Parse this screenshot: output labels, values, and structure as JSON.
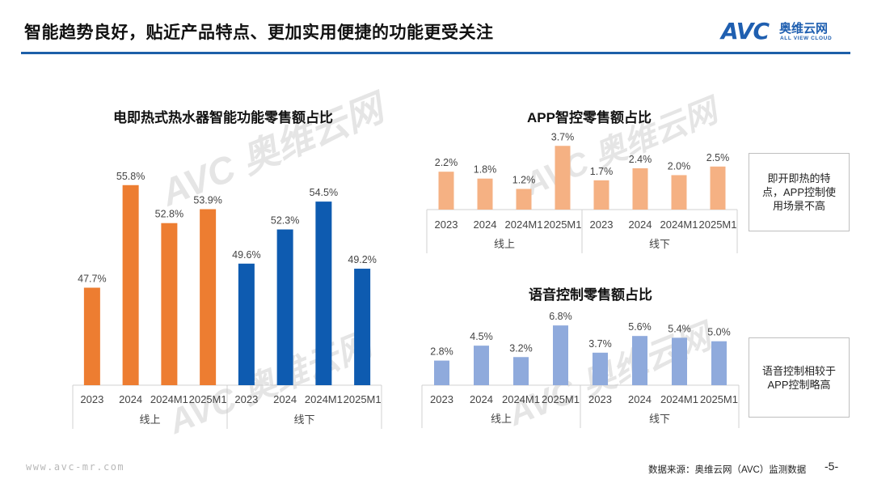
{
  "header": {
    "title": "智能趋势良好，贴近产品特点、更加实用便捷的功能更受关注",
    "accent_color": "#1d5fa8"
  },
  "logo": {
    "mark": "AVC",
    "name_cn": "奥维云网",
    "name_en": "ALL VIEW CLOUD"
  },
  "watermark": {
    "mark": "AVC",
    "name_cn": "奥维云网",
    "name_en": "ALL VIEW CLOUD"
  },
  "chart_data": [
    {
      "type": "bar",
      "title": "电即热式热水器智能功能零售额占比",
      "categories": [
        "2023",
        "2024",
        "2024M1",
        "2025M1",
        "2023",
        "2024",
        "2024M1",
        "2025M1"
      ],
      "groups": [
        "线上",
        "线下"
      ],
      "values": [
        47.7,
        55.8,
        52.8,
        53.9,
        49.6,
        52.3,
        54.5,
        49.2
      ],
      "labels": [
        "47.7%",
        "55.8%",
        "52.8%",
        "53.9%",
        "49.6%",
        "52.3%",
        "54.5%",
        "49.2%"
      ],
      "colors": [
        "#ed7d31",
        "#ed7d31",
        "#ed7d31",
        "#ed7d31",
        "#0e5bb0",
        "#0e5bb0",
        "#0e5bb0",
        "#0e5bb0"
      ],
      "ylim": [
        40,
        57
      ]
    },
    {
      "type": "bar",
      "title": "APP智控零售额占比",
      "categories": [
        "2023",
        "2024",
        "2024M1",
        "2025M1",
        "2023",
        "2024",
        "2024M1",
        "2025M1"
      ],
      "groups": [
        "线上",
        "线下"
      ],
      "values": [
        2.2,
        1.8,
        1.2,
        3.7,
        1.7,
        2.4,
        2.0,
        2.5
      ],
      "labels": [
        "2.2%",
        "1.8%",
        "1.2%",
        "3.7%",
        "1.7%",
        "2.4%",
        "2.0%",
        "2.5%"
      ],
      "colors": [
        "#f5b183",
        "#f5b183",
        "#f5b183",
        "#f5b183",
        "#f5b183",
        "#f5b183",
        "#f5b183",
        "#f5b183"
      ],
      "ylim": [
        0,
        3.9
      ]
    },
    {
      "type": "bar",
      "title": "语音控制零售额占比",
      "categories": [
        "2023",
        "2024",
        "2024M1",
        "2025M1",
        "2023",
        "2024",
        "2024M1",
        "2025M1"
      ],
      "groups": [
        "线上",
        "线下"
      ],
      "values": [
        2.8,
        4.5,
        3.2,
        6.8,
        3.7,
        5.6,
        5.4,
        5.0
      ],
      "labels": [
        "2.8%",
        "4.5%",
        "3.2%",
        "6.8%",
        "3.7%",
        "5.6%",
        "5.4%",
        "5.0%"
      ],
      "colors": [
        "#8faadc",
        "#8faadc",
        "#8faadc",
        "#8faadc",
        "#8faadc",
        "#8faadc",
        "#8faadc",
        "#8faadc"
      ],
      "ylim": [
        0,
        7.0
      ]
    }
  ],
  "notes": {
    "app": "即开即热的特点，APP控制使用场景不高",
    "voice": "语音控制相较于APP控制略高"
  },
  "footer": {
    "source": "数据来源：奥维云网（AVC）监测数据",
    "page": "-5-",
    "website": "www.avc-mr.com"
  }
}
